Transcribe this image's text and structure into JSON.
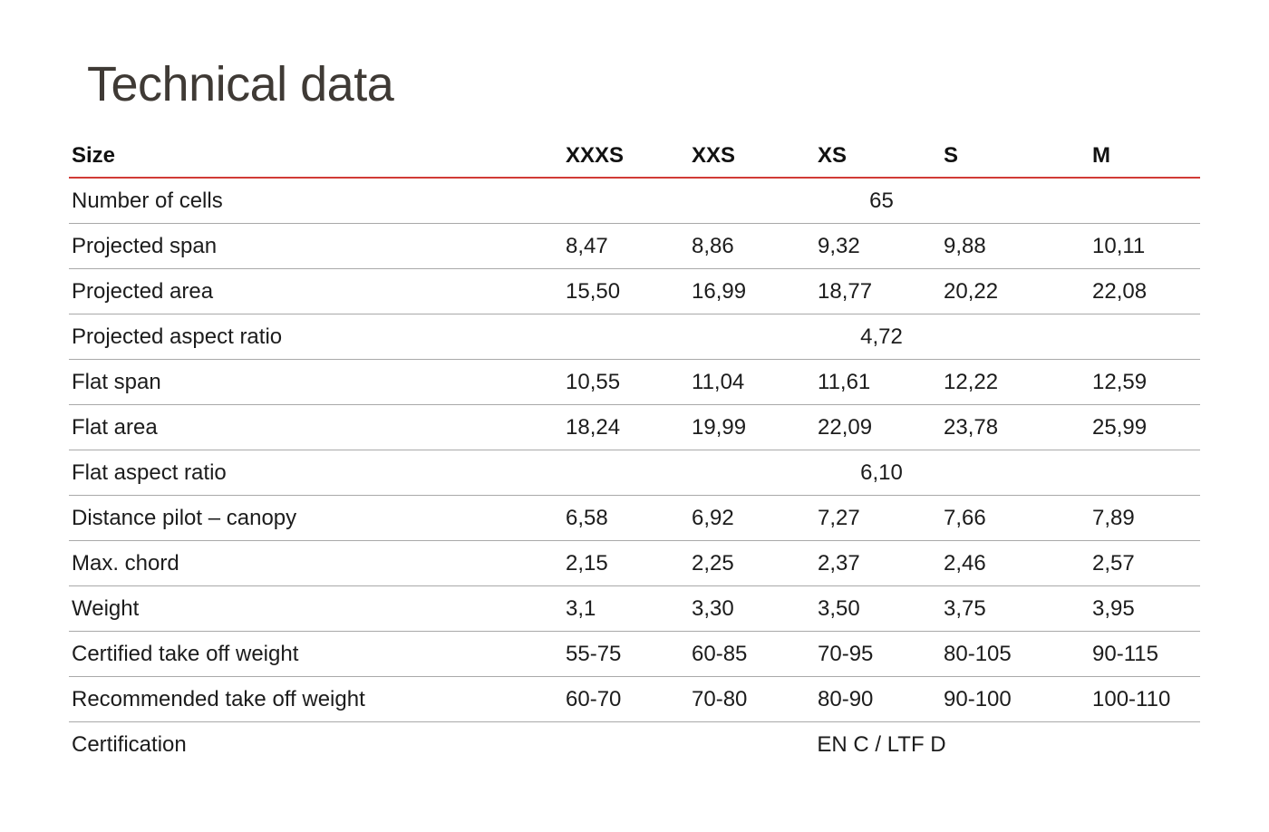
{
  "title": "Technical data",
  "table": {
    "header": {
      "label": "Size",
      "sizes": [
        "XXXS",
        "XXS",
        "XS",
        "S",
        "M"
      ]
    },
    "rows": [
      {
        "label": "Number of cells",
        "merged": "65"
      },
      {
        "label": "Projected span",
        "values": [
          "8,47",
          "8,86",
          "9,32",
          "9,88",
          "10,11"
        ]
      },
      {
        "label": "Projected area",
        "values": [
          "15,50",
          "16,99",
          "18,77",
          "20,22",
          "22,08"
        ]
      },
      {
        "label": "Projected aspect ratio",
        "merged": "4,72"
      },
      {
        "label": "Flat span",
        "values": [
          "10,55",
          "11,04",
          "11,61",
          "12,22",
          "12,59"
        ]
      },
      {
        "label": "Flat area",
        "values": [
          "18,24",
          "19,99",
          "22,09",
          "23,78",
          "25,99"
        ]
      },
      {
        "label": "Flat aspect ratio",
        "merged": "6,10"
      },
      {
        "label": "Distance pilot – canopy",
        "values": [
          "6,58",
          "6,92",
          "7,27",
          "7,66",
          "7,89"
        ]
      },
      {
        "label": "Max. chord",
        "values": [
          "2,15",
          "2,25",
          "2,37",
          "2,46",
          "2,57"
        ]
      },
      {
        "label": "Weight",
        "values": [
          "3,1",
          "3,30",
          "3,50",
          "3,75",
          "3,95"
        ]
      },
      {
        "label": "Certified take off weight",
        "values": [
          "55-75",
          "60-85",
          "70-95",
          "80-105",
          "90-115"
        ]
      },
      {
        "label": "Recommended take off weight",
        "values": [
          "60-70",
          "70-80",
          "80-90",
          "90-100",
          "100-110"
        ]
      },
      {
        "label": "Certification",
        "merged": "EN C / LTF D"
      }
    ]
  },
  "colors": {
    "header_rule": "#d13b36",
    "row_rule": "#a9a9a9",
    "title_text": "#3f3a35"
  }
}
